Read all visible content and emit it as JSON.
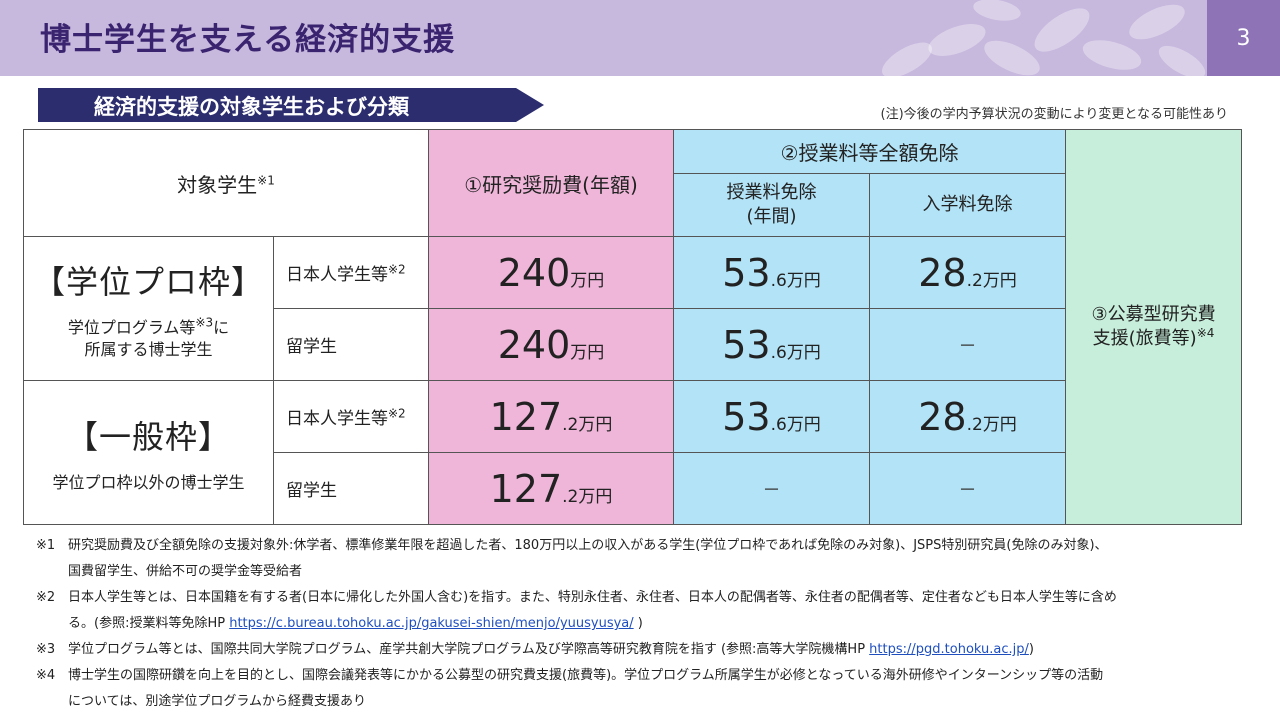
{
  "header": {
    "title": "博士学生を支える経済的支援",
    "page_number": "3"
  },
  "section": {
    "label": "経済的支援の対象学生および分類",
    "note": "(注)今後の学内予算状況の変動により変更となる可能性あり"
  },
  "table": {
    "head": {
      "target": "対象学生",
      "target_ref": "※1",
      "col1": "①研究奨励費(年額)",
      "col2": "②授業料等全額免除",
      "col2a_line1": "授業料免除",
      "col2a_line2": "(年間)",
      "col2b": "入学料免除",
      "col3_line1": "③公募型研究費",
      "col3_line2": "支援(旅費等)",
      "col3_ref": "※4"
    },
    "groups": [
      {
        "name": "【学位プロ枠】",
        "desc_line1a": "学位プログラム等",
        "desc_ref": "※3",
        "desc_line1b": "に",
        "desc_line2": "所属する博士学生",
        "rows": [
          {
            "sub": "日本人学生等",
            "sub_ref": "※2",
            "c1_int": "240",
            "c1_dec": "",
            "c1_unit": "万円",
            "c2_int": "53",
            "c2_dec": ".6",
            "c2_unit": "万円",
            "c3_int": "28",
            "c3_dec": ".2",
            "c3_unit": "万円"
          },
          {
            "sub": "留学生",
            "sub_ref": "",
            "c1_int": "240",
            "c1_dec": "",
            "c1_unit": "万円",
            "c2_int": "53",
            "c2_dec": ".6",
            "c2_unit": "万円",
            "c3_dash": "－"
          }
        ]
      },
      {
        "name": "【一般枠】",
        "desc_line1": "学位プロ枠以外の博士学生",
        "rows": [
          {
            "sub": "日本人学生等",
            "sub_ref": "※2",
            "c1_int": "127",
            "c1_dec": ".2",
            "c1_unit": "万円",
            "c2_int": "53",
            "c2_dec": ".6",
            "c2_unit": "万円",
            "c3_int": "28",
            "c3_dec": ".2",
            "c3_unit": "万円"
          },
          {
            "sub": "留学生",
            "sub_ref": "",
            "c1_int": "127",
            "c1_dec": ".2",
            "c1_unit": "万円",
            "c2_dash": "－",
            "c3_dash": "－"
          }
        ]
      }
    ]
  },
  "footnotes": [
    {
      "mark": "※1",
      "lines": [
        "研究奨励費及び全額免除の支援対象外:休学者、標準修業年限を超過した者、180万円以上の収入がある学生(学位プロ枠であれば免除のみ対象)、JSPS特別研究員(免除のみ対象)、",
        "国費留学生、併給不可の奨学金等受給者"
      ]
    },
    {
      "mark": "※2",
      "line1": "日本人学生等とは、日本国籍を有する者(日本に帰化した外国人含む)を指す。また、特別永住者、永住者、日本人の配偶者等、永住者の配偶者等、定住者なども日本人学生等に含め",
      "line2_pre": "る。(参照:授業料等免除HP ",
      "line2_link": "https://c.bureau.tohoku.ac.jp/gakusei-shien/menjo/yuusyusya/",
      "line2_post": " )"
    },
    {
      "mark": "※3",
      "pre": "学位プログラム等とは、国際共同大学院プログラム、産学共創大学院プログラム及び学際高等研究教育院を指す (参照:高等大学院機構HP ",
      "link": "https://pgd.tohoku.ac.jp/",
      "post": ")"
    },
    {
      "mark": "※4",
      "lines": [
        "博士学生の国際研鑽を向上を目的とし、国際会議発表等にかかる公募型の研究費支援(旅費等)。学位プログラム所属学生が必修となっている海外研修やインターンシップ等の活動",
        "については、別途学位プログラムから経費支援あり"
      ]
    }
  ],
  "colors": {
    "header_bg": "#c7b8dd",
    "title_color": "#3a2470",
    "page_num_bg": "#8e74b6",
    "section_bg": "#2c2d6e",
    "pink": "#efb6d9",
    "blue": "#b3e3f6",
    "green": "#c7eddb"
  }
}
